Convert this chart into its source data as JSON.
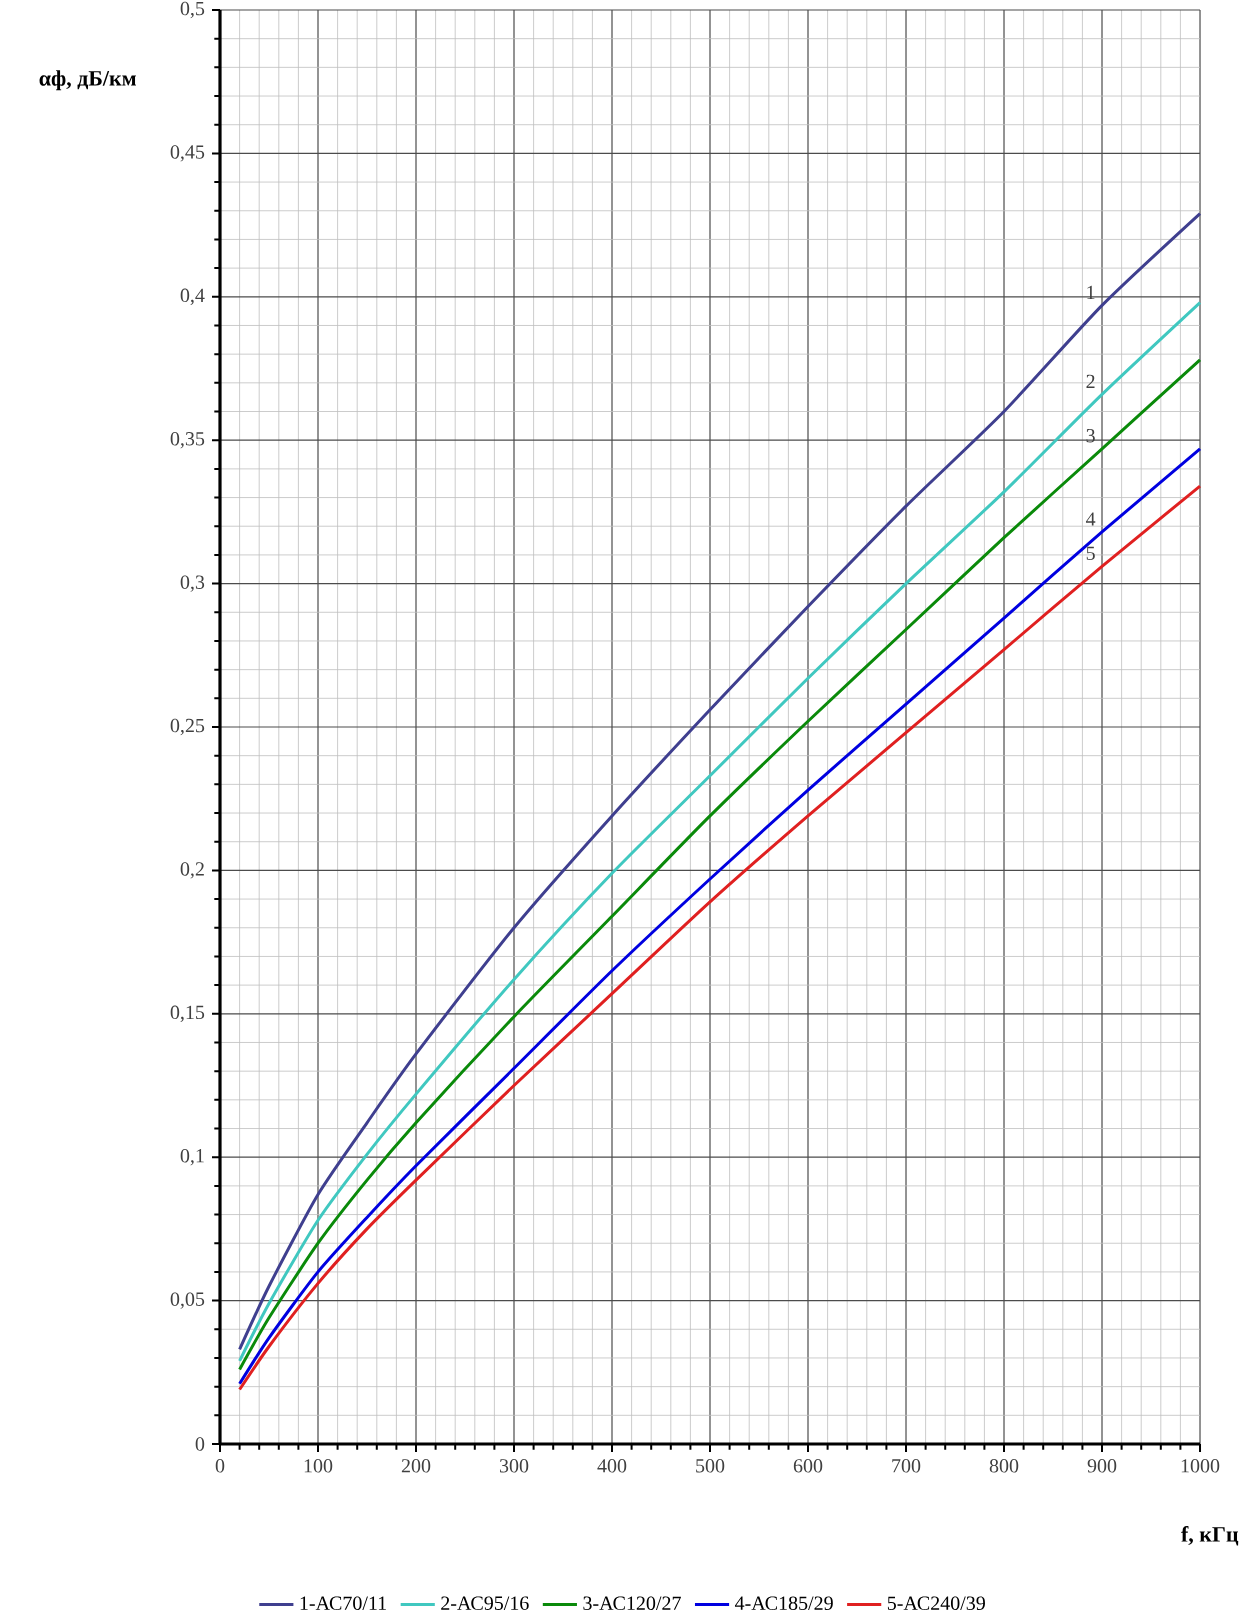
{
  "chart_data": {
    "type": "line",
    "xlabel": "f, кГц",
    "ylabel": "αф, дБ/км",
    "x": [
      20,
      50,
      100,
      150,
      200,
      300,
      400,
      500,
      600,
      700,
      800,
      900,
      1000
    ],
    "series": [
      {
        "name": "1-АС70/11",
        "color": "#3f3f8f",
        "values": [
          0.033,
          0.055,
          0.087,
          0.112,
          0.136,
          0.18,
          0.219,
          0.256,
          0.292,
          0.327,
          0.36,
          0.397,
          0.429
        ]
      },
      {
        "name": "2-АС95/16",
        "color": "#40c8c0",
        "values": [
          0.029,
          0.049,
          0.078,
          0.101,
          0.122,
          0.162,
          0.199,
          0.233,
          0.267,
          0.3,
          0.332,
          0.366,
          0.398
        ]
      },
      {
        "name": "3-АС120/27",
        "color": "#0a8a0a",
        "values": [
          0.026,
          0.044,
          0.07,
          0.092,
          0.112,
          0.149,
          0.184,
          0.219,
          0.252,
          0.284,
          0.316,
          0.347,
          0.378
        ]
      },
      {
        "name": "4-АС185/29",
        "color": "#0000e0",
        "values": [
          0.021,
          0.037,
          0.06,
          0.079,
          0.097,
          0.131,
          0.165,
          0.197,
          0.228,
          0.258,
          0.288,
          0.318,
          0.347
        ]
      },
      {
        "name": "5-АС240/39",
        "color": "#e02020",
        "values": [
          0.019,
          0.034,
          0.056,
          0.075,
          0.092,
          0.125,
          0.157,
          0.189,
          0.219,
          0.248,
          0.277,
          0.306,
          0.334
        ]
      }
    ],
    "xlim": [
      0,
      1000
    ],
    "ylim": [
      0,
      0.5
    ],
    "xticks": [
      0,
      100,
      200,
      300,
      400,
      500,
      600,
      700,
      800,
      900,
      1000
    ],
    "yticks": [
      0,
      {
        "value": 0.05,
        "label": "0,05"
      },
      {
        "value": 0.1,
        "label": "0,1"
      },
      {
        "value": 0.15,
        "label": "0,15"
      },
      {
        "value": 0.2,
        "label": "0,2"
      },
      {
        "value": 0.25,
        "label": "0,25"
      },
      {
        "value": 0.3,
        "label": "0,3"
      },
      {
        "value": 0.35,
        "label": "0,35"
      },
      {
        "value": 0.4,
        "label": "0,4"
      },
      {
        "value": 0.45,
        "label": "0,45"
      },
      {
        "value": 0.5,
        "label": "0,5"
      }
    ],
    "annotations": [
      "1",
      "2",
      "3",
      "4",
      "5"
    ],
    "grid": true,
    "legend": "bottom",
    "marker": "none",
    "line_style": "solid"
  }
}
